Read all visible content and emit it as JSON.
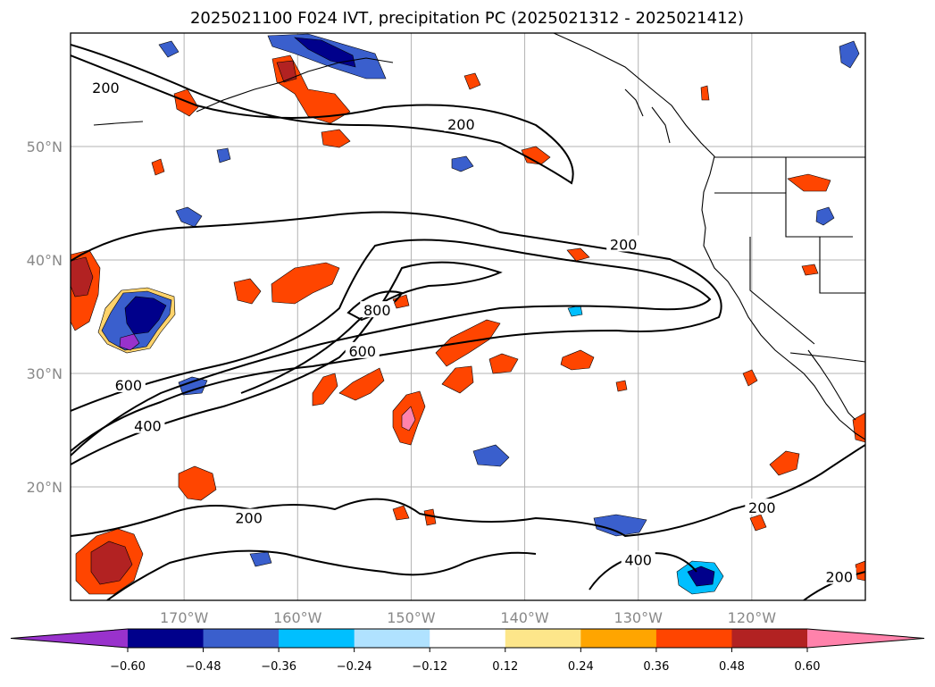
{
  "title": "2025021100 F024 IVT, precipitation PC (2025021312 - 2025021412)",
  "map": {
    "lon_range": [
      -180,
      -110
    ],
    "lat_range": [
      10,
      60
    ],
    "gridlines": true,
    "lat_ticks": [
      {
        "value": 50,
        "label": "50°N"
      },
      {
        "value": 40,
        "label": "40°N"
      },
      {
        "value": 30,
        "label": "30°N"
      },
      {
        "value": 20,
        "label": "20°N"
      }
    ],
    "lon_ticks": [
      {
        "value": -170,
        "label": "170°W"
      },
      {
        "value": -160,
        "label": "160°W"
      },
      {
        "value": -150,
        "label": "150°W"
      },
      {
        "value": -140,
        "label": "140°W"
      },
      {
        "value": -130,
        "label": "130°W"
      },
      {
        "value": -120,
        "label": "120°W"
      }
    ],
    "ivt_contour_labels": [
      {
        "text": "200",
        "lon": -176.9,
        "lat": 55.1
      },
      {
        "text": "200",
        "lon": -145.6,
        "lat": 51.9
      },
      {
        "text": "200",
        "lon": -131.3,
        "lat": 41.3
      },
      {
        "text": "800",
        "lon": -153.0,
        "lat": 35.5
      },
      {
        "text": "600",
        "lon": -154.3,
        "lat": 31.9
      },
      {
        "text": "600",
        "lon": -174.9,
        "lat": 28.9
      },
      {
        "text": "400",
        "lon": -173.2,
        "lat": 25.3
      },
      {
        "text": "200",
        "lon": -164.3,
        "lat": 17.2
      },
      {
        "text": "400",
        "lon": -130.0,
        "lat": 13.5
      },
      {
        "text": "200",
        "lon": -119.1,
        "lat": 18.1
      },
      {
        "text": "200",
        "lon": -112.3,
        "lat": 12.0
      }
    ]
  },
  "colorbar": {
    "tick_labels": [
      "−0.60",
      "−0.48",
      "−0.36",
      "−0.24",
      "−0.12",
      "0.12",
      "0.24",
      "0.36",
      "0.48",
      "0.60"
    ],
    "colors": [
      "#9932cc",
      "#00008b",
      "#3a5fcd",
      "#00bfff",
      "#b0e2ff",
      "#ffffff",
      "#fde68a",
      "#ffa500",
      "#ff4500",
      "#b22222",
      "#ff82ab"
    ]
  }
}
